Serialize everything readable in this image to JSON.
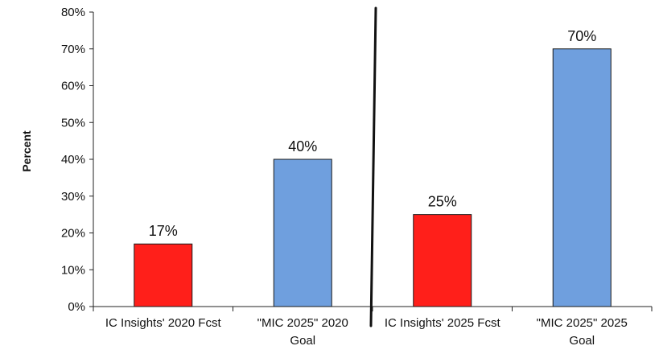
{
  "chart_data": {
    "type": "bar",
    "title": "",
    "xlabel": "",
    "ylabel": "Percent",
    "ylim": [
      0,
      80
    ],
    "y_ticks": [
      "0%",
      "10%",
      "20%",
      "30%",
      "40%",
      "50%",
      "60%",
      "70%",
      "80%"
    ],
    "grid": false,
    "legend": "none",
    "categories": [
      [
        "IC Insights' 2020 Fcst"
      ],
      [
        "\"MIC 2025\" 2020",
        "Goal"
      ],
      [
        "IC Insights' 2025 Fcst"
      ],
      [
        "\"MIC 2025\" 2025",
        "Goal"
      ]
    ],
    "values": [
      17,
      40,
      25,
      70
    ],
    "data_labels": [
      "17%",
      "40%",
      "25%",
      "70%"
    ],
    "bar_colors": [
      "#ff1f1a",
      "#6f9fde",
      "#ff1f1a",
      "#6f9fde"
    ],
    "divider": "between the 2020 and 2025 groups"
  }
}
